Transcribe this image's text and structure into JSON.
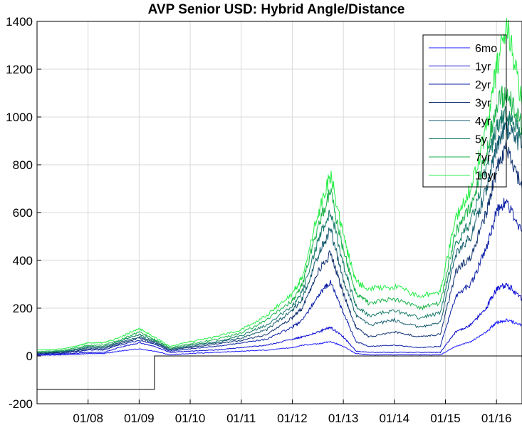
{
  "chart_data": {
    "type": "line",
    "title": "AVP Senior USD: Hybrid Angle/Distance",
    "xlabel": "",
    "ylabel": "",
    "ylim": [
      -200,
      1400
    ],
    "yticks": [
      -200,
      0,
      200,
      400,
      600,
      800,
      1000,
      1200,
      1400
    ],
    "xlim": [
      2007.0,
      2016.5
    ],
    "xticks": [
      {
        "value": 2008.0,
        "label": "01/08"
      },
      {
        "value": 2009.0,
        "label": "01/09"
      },
      {
        "value": 2010.0,
        "label": "01/10"
      },
      {
        "value": 2011.0,
        "label": "01/11"
      },
      {
        "value": 2012.0,
        "label": "01/12"
      },
      {
        "value": 2013.0,
        "label": "01/13"
      },
      {
        "value": 2014.0,
        "label": "01/14"
      },
      {
        "value": 2015.0,
        "label": "01/15"
      },
      {
        "value": 2016.0,
        "label": "01/16"
      }
    ],
    "grid": true,
    "legend_position": "top-right",
    "x": [
      2007.0,
      2007.5,
      2007.8,
      2008.0,
      2008.3,
      2008.6,
      2009.0,
      2009.3,
      2009.6,
      2010.0,
      2010.5,
      2011.0,
      2011.5,
      2012.0,
      2012.2,
      2012.5,
      2012.75,
      2013.0,
      2013.25,
      2013.5,
      2014.0,
      2014.5,
      2014.9,
      2015.2,
      2015.5,
      2015.8,
      2016.0,
      2016.2,
      2016.5
    ],
    "series": [
      {
        "name": "6mo",
        "color": "#1a1aff",
        "values": [
          3,
          5,
          8,
          10,
          10,
          20,
          30,
          20,
          5,
          10,
          15,
          20,
          25,
          35,
          45,
          50,
          60,
          40,
          10,
          5,
          5,
          5,
          5,
          40,
          60,
          100,
          140,
          150,
          130
        ]
      },
      {
        "name": "1yr",
        "color": "#0a0ad4",
        "values": [
          5,
          8,
          12,
          15,
          15,
          35,
          55,
          40,
          15,
          20,
          25,
          35,
          45,
          70,
          80,
          100,
          120,
          80,
          20,
          15,
          15,
          15,
          15,
          100,
          130,
          200,
          280,
          300,
          240
        ]
      },
      {
        "name": "2yr",
        "color": "#0b1fa6",
        "values": [
          8,
          12,
          18,
          25,
          25,
          45,
          65,
          50,
          20,
          30,
          40,
          55,
          70,
          120,
          150,
          250,
          310,
          180,
          60,
          40,
          45,
          35,
          40,
          250,
          300,
          450,
          600,
          650,
          520
        ]
      },
      {
        "name": "3yr",
        "color": "#0e3070",
        "values": [
          10,
          15,
          22,
          30,
          30,
          50,
          75,
          55,
          25,
          35,
          50,
          65,
          90,
          160,
          200,
          350,
          430,
          260,
          120,
          80,
          100,
          80,
          90,
          350,
          420,
          600,
          780,
          880,
          700
        ]
      },
      {
        "name": "4yr",
        "color": "#125a6e",
        "values": [
          12,
          18,
          26,
          35,
          35,
          55,
          80,
          60,
          28,
          40,
          55,
          75,
          110,
          190,
          240,
          420,
          530,
          320,
          170,
          130,
          150,
          120,
          140,
          420,
          500,
          700,
          880,
          950,
          880
        ]
      },
      {
        "name": "5y",
        "color": "#167a6a",
        "values": [
          14,
          20,
          30,
          40,
          40,
          60,
          90,
          65,
          30,
          45,
          60,
          85,
          130,
          210,
          270,
          480,
          610,
          380,
          210,
          170,
          190,
          160,
          180,
          470,
          560,
          780,
          960,
          1020,
          920
        ]
      },
      {
        "name": "7yr",
        "color": "#18b348",
        "values": [
          18,
          24,
          35,
          45,
          45,
          65,
          100,
          70,
          35,
          50,
          70,
          95,
          150,
          230,
          300,
          540,
          690,
          440,
          260,
          220,
          240,
          200,
          220,
          520,
          620,
          850,
          1060,
          1100,
          960
        ]
      },
      {
        "name": "10yr",
        "color": "#22ee44",
        "values": [
          25,
          30,
          42,
          55,
          55,
          75,
          115,
          80,
          40,
          60,
          80,
          110,
          170,
          260,
          330,
          590,
          760,
          500,
          310,
          280,
          290,
          250,
          270,
          580,
          700,
          950,
          1200,
          1400,
          1050
        ]
      }
    ],
    "reference_line": {
      "color": "#000000",
      "x": [
        2007.0,
        2009.3,
        2009.3,
        2016.5
      ],
      "values": [
        -140,
        -140,
        0,
        0
      ]
    }
  }
}
